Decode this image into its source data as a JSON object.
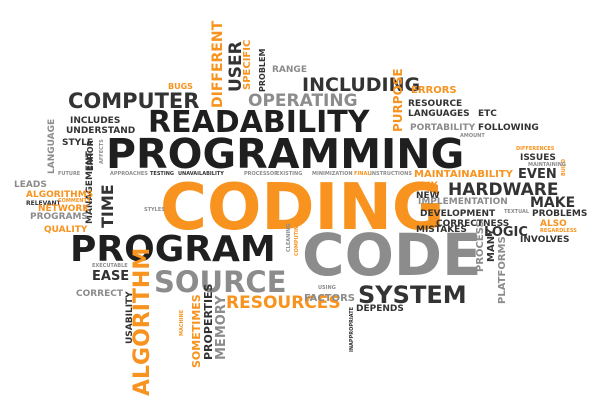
{
  "words": {
    "coding": "CODING",
    "programming": "PROGRAMMING",
    "program": "PROGRAM",
    "code": "CODE",
    "readability": "READABILITY",
    "computer": "COMPUTER",
    "source": "SOURCE",
    "system": "SYSTEM",
    "resources": "RESOURCES",
    "including": "INCLUDING",
    "operating": "OPERATING",
    "hardware": "HARDWARE",
    "algorithm": "ALGORITHM",
    "user": "USER",
    "different": "DIFFERENT",
    "specific": "SPECIFIC",
    "problem": "PROBLEM",
    "range": "RANGE",
    "bugs": "BUGS",
    "purpose": "PURPOSE",
    "errors": "ERRORS",
    "resource": "RESOURCE",
    "languages": "LANGUAGES",
    "etc": "ETC",
    "portability": "PORTABILITY",
    "following": "FOLLOWING",
    "includes": "INCLUDES",
    "understand": "UNDERSTAND",
    "style": "STYLE",
    "language": "LANGUAGE",
    "leads": "LEADS",
    "algorithms": "ALGORITHMS",
    "relevant": "RELEVANT",
    "network": "NETWORK",
    "programs": "PROGRAMS",
    "quality": "QUALITY",
    "error": "ERROR",
    "management": "MANAGEMENT",
    "time": "TIME",
    "maintainability": "MAINTAINABILITY",
    "may": "MAY",
    "new": "NEW",
    "issues": "ISSUES",
    "even": "EVEN",
    "make": "MAKE",
    "implementation": "IMPLEMENTATION",
    "development": "DEVELOPMENT",
    "correctness": "CORRECTNESS",
    "mistakes": "MISTAKES",
    "logic": "LOGIC",
    "problems": "PROBLEMS",
    "involves": "INVOLVES",
    "also": "ALSO",
    "ease": "EASE",
    "correct": "CORRECT",
    "usability": "USABILITY",
    "sometimes": "SOMETIMES",
    "properties": "PROPERTIES",
    "memory": "MEMORY",
    "factors": "FACTORS",
    "depends": "DEPENDS",
    "process": "PROCESS",
    "many": "MANY",
    "platforms": "PLATFORMS",
    "approaches": "APPROACHES",
    "unavailability": "UNAVAILABILITY",
    "processor": "PROCESSOR",
    "existing": "EXISTING",
    "minimization": "MINIMIZATION",
    "final": "FINAL",
    "instructions": "INSTRUCTIONS",
    "testing": "TESTING",
    "future": "FUTURE",
    "affects": "AFFECTS",
    "comments": "COMMENTS",
    "styles": "STYLES",
    "executable": "EXECUTABLE",
    "using": "USING",
    "cleaning": "CLEANING",
    "computing": "COMPUTING",
    "inappropriate": "INAPPROPRIATE",
    "differences": "DIFFERENCES",
    "maintaining": "MAINTAINING",
    "textual": "TEXTUAL",
    "regardless": "REGARDLESS",
    "build": "BUILD",
    "amount": "AMOUNT",
    "machine": "MACHINE"
  },
  "colors": {
    "orange": "#f7931e",
    "dark": "#333333",
    "grey": "#8c8c8c"
  }
}
